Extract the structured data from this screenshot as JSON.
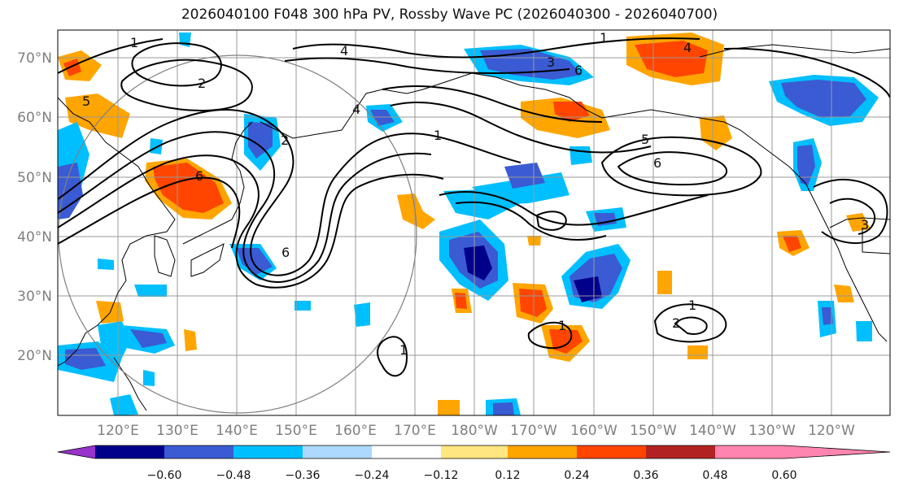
{
  "title": "2026040100 F048 300 hPa PV, Rossby Wave PC (2026040300 - 2026040700)",
  "lat_ticks": [
    "70°N",
    "60°N",
    "50°N",
    "40°N",
    "30°N",
    "20°N"
  ],
  "lon_ticks": [
    "120°E",
    "130°E",
    "140°E",
    "150°E",
    "160°E",
    "170°E",
    "180°W",
    "170°W",
    "160°W",
    "150°W",
    "140°W",
    "130°W",
    "120°W"
  ],
  "colorbar": {
    "colors": [
      "#9933cc",
      "#00008b",
      "#3a5bd3",
      "#00bfff",
      "#add8ff",
      "#ffffff",
      "#ffe680",
      "#ffa500",
      "#ff4500",
      "#b22222",
      "#ff85b0"
    ],
    "labels": [
      "−0.60",
      "−0.48",
      "−0.36",
      "−0.24",
      "−0.12",
      "0.12",
      "0.24",
      "0.36",
      "0.48",
      "0.60"
    ]
  },
  "contour_labels": [
    "1",
    "2",
    "4",
    "5",
    "6",
    "3",
    "4",
    "1",
    "4",
    "2",
    "1",
    "6",
    "5",
    "6",
    "1",
    "2",
    "1",
    "1",
    "3",
    "6"
  ]
}
